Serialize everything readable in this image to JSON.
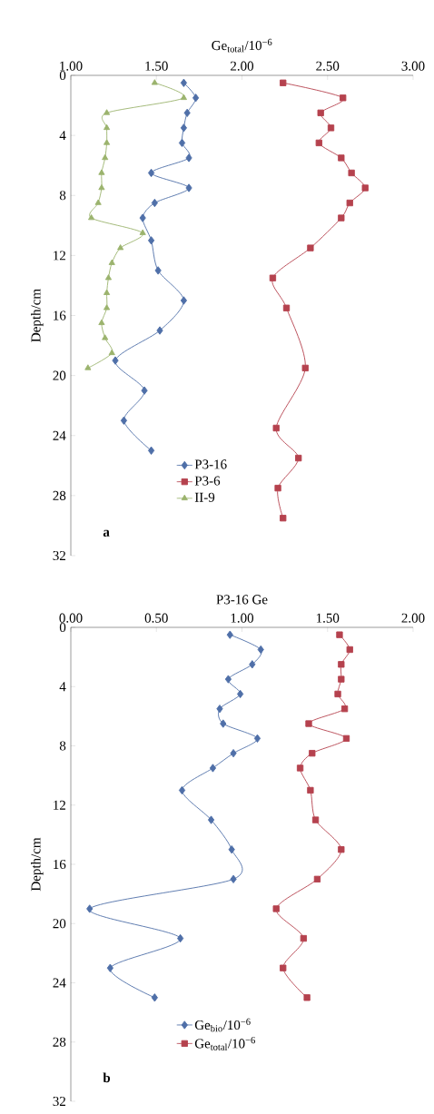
{
  "chart_data": [
    {
      "type": "line",
      "xlabel": "Ge$_{total}$/10$^{−6}$",
      "ylabel": "Depth/cm",
      "annotations": [
        "a"
      ],
      "legend": "bottom",
      "xlim": [
        1,
        3
      ],
      "xticks": [
        {
          "value": 1,
          "label": "1.00"
        },
        {
          "value": 1.5,
          "label": "1.50"
        },
        {
          "value": 2,
          "label": "2.00"
        },
        {
          "value": 2.5,
          "label": "2.50"
        },
        {
          "value": 3,
          "label": "3.00"
        }
      ],
      "ylim": [
        32,
        0
      ],
      "yticks": [
        0,
        4,
        8,
        12,
        16,
        20,
        24,
        28,
        32
      ],
      "series": [
        {
          "name": "P3-16",
          "color": "#4f6fa8",
          "marker": "diamond",
          "x": [
            1.66,
            1.73,
            1.68,
            1.66,
            1.65,
            1.69,
            1.47,
            1.69,
            1.49,
            1.42,
            1.47,
            1.51,
            1.66,
            1.52,
            1.26,
            1.43,
            1.31,
            1.47
          ],
          "values": [
            0.5,
            1.5,
            2.5,
            3.5,
            4.5,
            5.5,
            6.5,
            7.5,
            8.5,
            9.5,
            11,
            13,
            15,
            17,
            19,
            21,
            23,
            25
          ]
        },
        {
          "name": "P3-6",
          "color": "#b5424e",
          "marker": "square",
          "x": [
            2.24,
            2.59,
            2.46,
            2.52,
            2.45,
            2.58,
            2.64,
            2.72,
            2.63,
            2.58,
            2.4,
            2.18,
            2.26,
            2.37,
            2.2,
            2.33,
            2.21,
            2.24
          ],
          "values": [
            0.5,
            1.5,
            2.5,
            3.5,
            4.5,
            5.5,
            6.5,
            7.5,
            8.5,
            9.5,
            11.5,
            13.5,
            15.5,
            19.5,
            23.5,
            25.5,
            27.5,
            29.5
          ]
        },
        {
          "name": "II-9",
          "color": "#9bb36d",
          "marker": "triangle",
          "x": [
            1.49,
            1.66,
            1.21,
            1.21,
            1.21,
            1.2,
            1.18,
            1.18,
            1.16,
            1.12,
            1.42,
            1.29,
            1.24,
            1.22,
            1.21,
            1.21,
            1.18,
            1.2,
            1.24,
            1.1
          ],
          "values": [
            0.5,
            1.5,
            2.5,
            3.5,
            4.5,
            5.5,
            6.5,
            7.5,
            8.5,
            9.5,
            10.5,
            11.5,
            12.5,
            13.5,
            14.5,
            15.5,
            16.5,
            17.5,
            18.5,
            19.5
          ]
        }
      ]
    },
    {
      "type": "line",
      "xlabel": "P3-16 Ge",
      "ylabel": "Depth/cm",
      "annotations": [
        "b"
      ],
      "legend": "bottom",
      "xlim": [
        0,
        2
      ],
      "xticks": [
        {
          "value": 0,
          "label": "0.00"
        },
        {
          "value": 0.5,
          "label": "0.50"
        },
        {
          "value": 1,
          "label": "1.00"
        },
        {
          "value": 1.5,
          "label": "1.50"
        },
        {
          "value": 2,
          "label": "2.00"
        }
      ],
      "ylim": [
        32,
        0
      ],
      "yticks": [
        0,
        4,
        8,
        12,
        16,
        20,
        24,
        28,
        32
      ],
      "series": [
        {
          "name": "Ge$_{bio}$/10$^{−6}$",
          "color": "#4f6fa8",
          "marker": "diamond",
          "x": [
            0.93,
            1.11,
            1.06,
            0.92,
            0.99,
            0.87,
            0.89,
            1.09,
            0.95,
            0.83,
            0.65,
            0.82,
            0.94,
            0.95,
            0.11,
            0.64,
            0.23,
            0.49
          ],
          "values": [
            0.5,
            1.5,
            2.5,
            3.5,
            4.5,
            5.5,
            6.5,
            7.5,
            8.5,
            9.5,
            11,
            13,
            15,
            17,
            19,
            21,
            23,
            25
          ]
        },
        {
          "name": "Ge$_{total}$/10$^{−6}$",
          "color": "#b5424e",
          "marker": "square",
          "x": [
            1.57,
            1.63,
            1.58,
            1.58,
            1.56,
            1.6,
            1.39,
            1.61,
            1.41,
            1.34,
            1.4,
            1.43,
            1.58,
            1.44,
            1.2,
            1.36,
            1.24,
            1.38
          ],
          "values": [
            0.5,
            1.5,
            2.5,
            3.5,
            4.5,
            5.5,
            6.5,
            7.5,
            8.5,
            9.5,
            11,
            13,
            15,
            17,
            19,
            21,
            23,
            25
          ]
        }
      ]
    }
  ]
}
